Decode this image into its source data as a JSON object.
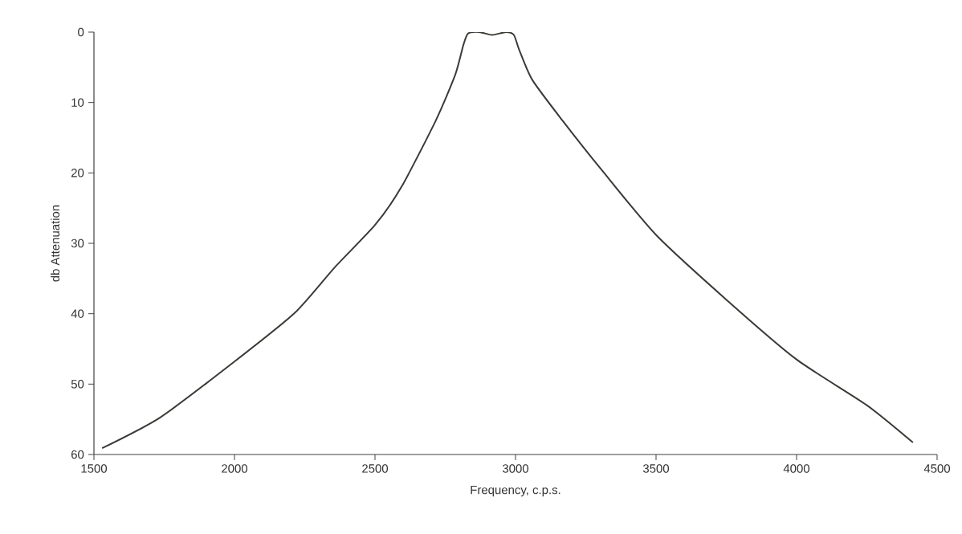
{
  "chart_data": {
    "type": "line",
    "xlabel": "Frequency, c.p.s.",
    "ylabel": "db Attenuation",
    "x": [
      1529,
      1737,
      2000,
      2214,
      2357,
      2500,
      2594,
      2717,
      2786,
      2814,
      2831,
      2871,
      2917,
      2966,
      2994,
      3014,
      3060,
      3166,
      3309,
      3500,
      3750,
      4000,
      4250,
      4414
    ],
    "values": [
      59.1,
      54.7,
      46.8,
      39.9,
      33.4,
      27.4,
      22.0,
      12.5,
      6.0,
      1.9,
      0.2,
      0,
      0.4,
      0,
      0.4,
      2.6,
      6.8,
      12.5,
      19.7,
      28.8,
      38,
      46.5,
      53,
      58.3
    ],
    "color": "#3b3a36",
    "xlim": [
      1500,
      4500
    ],
    "xticks": [
      1500,
      2000,
      2500,
      3000,
      3500,
      4000,
      4500
    ],
    "ylim": [
      60,
      0
    ],
    "yticks": [
      0,
      10,
      20,
      30,
      40,
      50,
      60
    ]
  }
}
